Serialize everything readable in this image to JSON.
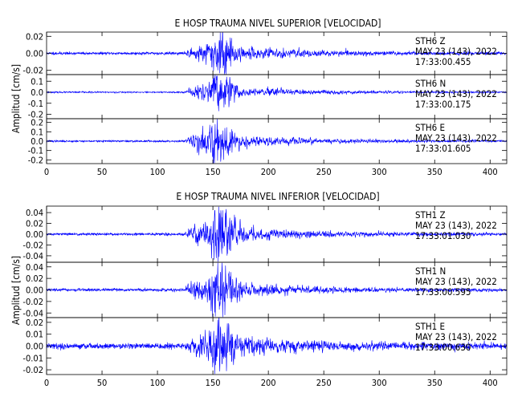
{
  "figure": {
    "x_ticks": [
      0,
      50,
      100,
      150,
      200,
      250,
      300,
      350,
      400
    ]
  },
  "chart_data": [
    {
      "type": "line",
      "title": "E HOSP TRAUMA NIVEL SUPERIOR [VELOCIDAD]",
      "ylabel": "Amplitud [cm/s]",
      "xlim": [
        0,
        415
      ],
      "line_color": "#0000ff",
      "panels": [
        {
          "station": "STH6",
          "component": "Z",
          "date": "MAY 23 (143), 2022",
          "time": "17:33:00.455",
          "ylim": [
            -0.025,
            0.025
          ],
          "yticks": [
            "0.02",
            "0.00",
            "-0.02"
          ],
          "ytick_values": [
            0.02,
            0.0,
            -0.02
          ],
          "noise": 0.0008,
          "peak": 0.022,
          "seed": 11
        },
        {
          "station": "STH6",
          "component": "N",
          "date": "MAY 23 (143), 2022",
          "time": "17:33:00.175",
          "ylim": [
            -0.24,
            0.16
          ],
          "yticks": [
            "0.1",
            "0.0",
            "-0.1",
            "-0.2"
          ],
          "ytick_values": [
            0.1,
            0.0,
            -0.1,
            -0.2
          ],
          "noise": 0.003,
          "peak": 0.15,
          "seed": 23
        },
        {
          "station": "STH6",
          "component": "E",
          "date": "MAY 23 (143), 2022",
          "time": "17:33:01.605",
          "ylim": [
            -0.24,
            0.24
          ],
          "yticks": [
            "0.2",
            "0.1",
            "0.0",
            "-0.1",
            "-0.2"
          ],
          "ytick_values": [
            0.2,
            0.1,
            0.0,
            -0.1,
            -0.2
          ],
          "noise": 0.005,
          "peak": 0.2,
          "seed": 37
        }
      ]
    },
    {
      "type": "line",
      "title": "E HOSP TRAUMA NIVEL INFERIOR [VELOCIDAD]",
      "ylabel": "Amplitud [cm/s]",
      "xlim": [
        0,
        415
      ],
      "line_color": "#0000ff",
      "panels": [
        {
          "station": "STH1",
          "component": "Z",
          "date": "MAY 23 (143), 2022",
          "time": "17:33:01.030",
          "ylim": [
            -0.052,
            0.052
          ],
          "yticks": [
            "0.04",
            "0.02",
            "0.00",
            "-0.02",
            "-0.04"
          ],
          "ytick_values": [
            0.04,
            0.02,
            0.0,
            -0.02,
            -0.04
          ],
          "noise": 0.0012,
          "peak": 0.045,
          "seed": 51
        },
        {
          "station": "STH1",
          "component": "N",
          "date": "MAY 23 (143), 2022",
          "time": "17:33:00.595",
          "ylim": [
            -0.048,
            0.048
          ],
          "yticks": [
            "0.04",
            "0.02",
            "0.00",
            "-0.02",
            "-0.04"
          ],
          "ytick_values": [
            0.04,
            0.02,
            0.0,
            -0.02,
            -0.04
          ],
          "noise": 0.0012,
          "peak": 0.04,
          "seed": 67
        },
        {
          "station": "STH1",
          "component": "E",
          "date": "MAY 23 (143), 2022",
          "time": "17:33:00.630",
          "ylim": [
            -0.024,
            0.024
          ],
          "yticks": [
            "0.02",
            "0.01",
            "0.00",
            "-0.01",
            "-0.02"
          ],
          "ytick_values": [
            0.02,
            0.01,
            0.0,
            -0.01,
            -0.02
          ],
          "noise": 0.0012,
          "peak": 0.02,
          "seed": 79
        }
      ]
    }
  ]
}
